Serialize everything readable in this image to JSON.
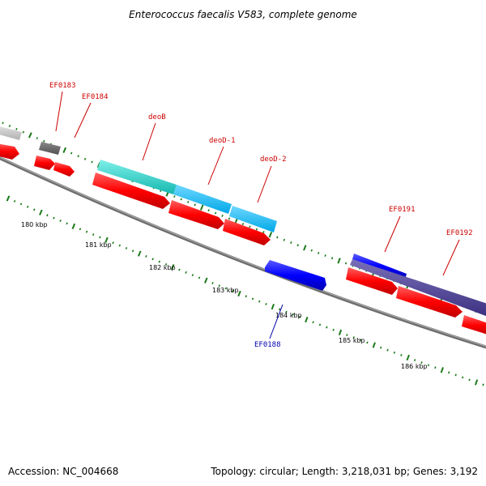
{
  "title": "Enterococcus faecalis V583, complete genome",
  "footer": {
    "accession": "Accession: NC_004668",
    "summary": "Topology: circular; Length: 3,218,031 bp; Genes: 3,192"
  },
  "colors": {
    "forward_strand": "#ff0000",
    "reverse_strand": "#0000ff",
    "tick": "#1a7a1a",
    "backbone": "#808080",
    "label_forward": "#cc0000",
    "label_reverse": "#0000aa"
  },
  "scale_labels": [
    "180 kbp",
    "181 kbp",
    "182 kbp",
    "183 kbp",
    "184 kbp",
    "185 kbp",
    "186 kbp"
  ],
  "gene_labels": [
    {
      "name": "EF0183",
      "strand": "forward"
    },
    {
      "name": "EF0184",
      "strand": "forward"
    },
    {
      "name": "deoB",
      "strand": "forward"
    },
    {
      "name": "deoD-1",
      "strand": "forward"
    },
    {
      "name": "deoD-2",
      "strand": "forward"
    },
    {
      "name": "EF0188",
      "strand": "reverse"
    },
    {
      "name": "EF0191",
      "strand": "forward"
    },
    {
      "name": "EF0192",
      "strand": "forward"
    }
  ]
}
